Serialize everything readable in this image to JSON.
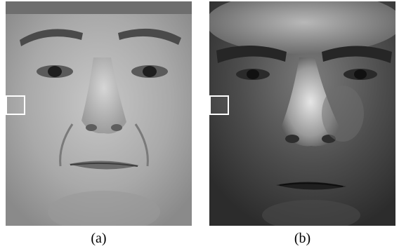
{
  "figure": {
    "panels": [
      {
        "id": "a",
        "caption": "(a)"
      },
      {
        "id": "b",
        "caption": "(b)"
      }
    ],
    "colors": {
      "roi_box": "#ffffff",
      "background": "#ffffff"
    }
  }
}
